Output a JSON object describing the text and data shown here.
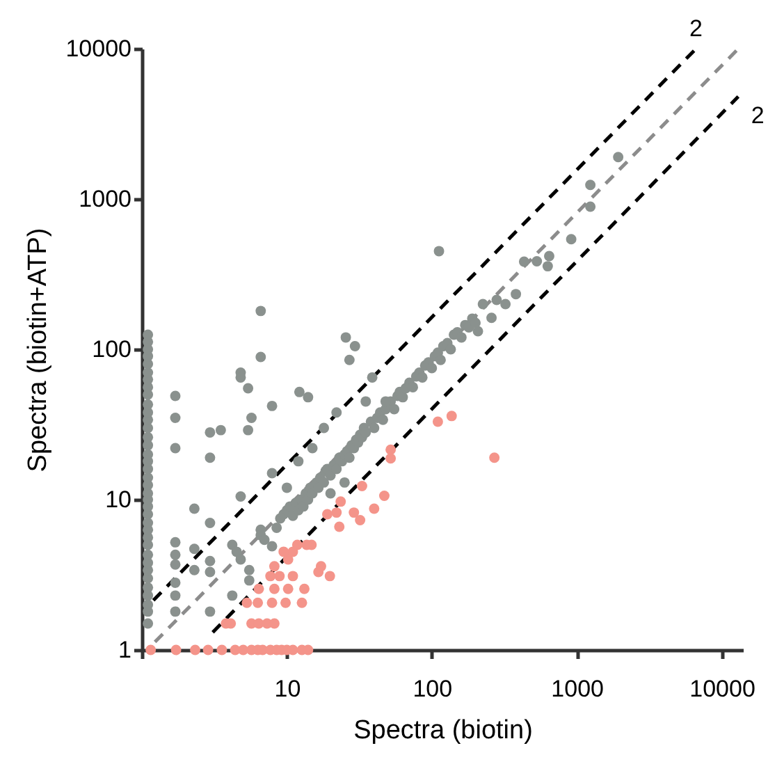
{
  "chart_data": {
    "type": "scatter",
    "xlabel": "Spectra (biotin)",
    "ylabel": "Spectra (biotin+ATP)",
    "xlim": [
      1,
      14000
    ],
    "ylim": [
      1,
      10000
    ],
    "xticks": [
      {
        "value": 1,
        "label": null
      },
      10,
      100,
      1000,
      10000
    ],
    "yticks": [
      1,
      10,
      100,
      1000,
      10000
    ],
    "log": "xy",
    "grid": false,
    "marker": "circle",
    "annotations": [
      "2",
      "2"
    ],
    "series": [
      {
        "type": "line",
        "marker": "none",
        "color": "#000000",
        "line_style": "dashed",
        "x": [
          1.2,
          6640
        ],
        "values": [
          2.14,
          10000
        ]
      },
      {
        "type": "line",
        "marker": "none",
        "color": "#000000",
        "line_style": "dashed",
        "x": [
          3.08,
          13000
        ],
        "values": [
          1.31,
          4800
        ]
      },
      {
        "type": "line",
        "marker": "none",
        "color": "#8c8c8c",
        "line_style": "dashed",
        "x": [
          1.23,
          13000
        ],
        "values": [
          1.13,
          10000
        ]
      },
      {
        "color": "#8a918e",
        "x": [
          1.1,
          1.1,
          1.1,
          1.1,
          1.1,
          1.1,
          1.1,
          1.1,
          1.1,
          1.1,
          1.1,
          1.1,
          1.1,
          1.1,
          1.1,
          1.1,
          1.1,
          1.1,
          1.1,
          1.1,
          1.1,
          1.1,
          1.1,
          1.1,
          1.1,
          1.1,
          1.1,
          1.1,
          1.1,
          1.1,
          1.1,
          1.1,
          1.1,
          1.1,
          1.1,
          1.1,
          1.1,
          1.7,
          1.7,
          1.7,
          1.7,
          1.7,
          1.7,
          1.7,
          1.7,
          1.7,
          2.3,
          2.3,
          2.3,
          2.95,
          3.5,
          2.95,
          2.95,
          2.95,
          2.95,
          2.95,
          4.8,
          4.8,
          5.4,
          7.9,
          5.7,
          5.4,
          6.6,
          6.6,
          12.2,
          14,
          25.5,
          29.5,
          27,
          7.9,
          10,
          4.8,
          4.2,
          4.5,
          4.8,
          5.5,
          5.5,
          6.6,
          6.6,
          7,
          7.9,
          4.2,
          8.5,
          9,
          9.5,
          10,
          10.5,
          11,
          11.5,
          12,
          12.5,
          13,
          13.5,
          14,
          14.5,
          15,
          16,
          16.5,
          17,
          18,
          18.5,
          19,
          20,
          21,
          22,
          23,
          24,
          25,
          26,
          27,
          28,
          29,
          30,
          31,
          32,
          33,
          34,
          35,
          38,
          40,
          42,
          44,
          46,
          48,
          52,
          55,
          58,
          60,
          63,
          66,
          70,
          74,
          78,
          82,
          86,
          90,
          95,
          100,
          105,
          110,
          115,
          120,
          128,
          135,
          142,
          150,
          160,
          170,
          180,
          190,
          200,
          208,
          225,
          258,
          280,
          322,
          380,
          433,
          530,
          645,
          630,
          915,
          1240,
          1240,
          1930,
          112,
          38.8,
          22,
          35,
          48,
          18,
          15,
          12,
          20,
          25
        ],
        "values": [
          1.5,
          1.8,
          2,
          2.3,
          2.6,
          3,
          3.4,
          3.8,
          4.3,
          5,
          5.6,
          6.3,
          7,
          8,
          9,
          10,
          11,
          12.5,
          14,
          16,
          18,
          20,
          23,
          26,
          30,
          34,
          38,
          43,
          50,
          56,
          63,
          70,
          80,
          90,
          100,
          112,
          125,
          49,
          35,
          22,
          5.2,
          4.3,
          3.7,
          2.8,
          2.3,
          1.8,
          8.7,
          4.7,
          3.4,
          28,
          29,
          19,
          7,
          3.9,
          3.3,
          1.8,
          70,
          65,
          55,
          42,
          35,
          29,
          180,
          89,
          52,
          48,
          120,
          105,
          85,
          15,
          12,
          10.5,
          5,
          4.5,
          4,
          3.4,
          2.9,
          6.3,
          5.8,
          5.4,
          4.9,
          2.3,
          6.5,
          7.5,
          8,
          8.5,
          9,
          7.8,
          9.5,
          8.5,
          10,
          9,
          11,
          10,
          12,
          11,
          13,
          12,
          14,
          13,
          15.5,
          16,
          14.5,
          17,
          16,
          19,
          18,
          20,
          21,
          19,
          23,
          22,
          25,
          24,
          27,
          26,
          30,
          28,
          33,
          30,
          35,
          38,
          34,
          40,
          45,
          40,
          49,
          52,
          48,
          55,
          60,
          56,
          66,
          70,
          65,
          78,
          82,
          75,
          90,
          95,
          85,
          105,
          110,
          100,
          125,
          130,
          120,
          145,
          140,
          160,
          150,
          132,
          200,
          162,
          213,
          200,
          233,
          383,
          385,
          417,
          357,
          540,
          1240,
          890,
          1900,
          450,
          65,
          38,
          45,
          45,
          30,
          22,
          18,
          11,
          13
        ]
      },
      {
        "color": "#f4948a",
        "x": [
          110,
          137,
          270,
          52,
          52,
          33,
          47,
          40,
          29,
          32,
          22,
          23,
          19,
          23.5,
          14.8,
          13.7,
          11.8,
          11,
          10.2,
          9.5,
          8.2,
          7.7,
          8.9,
          8.2,
          10.2,
          11,
          13.2,
          12.7,
          9.8,
          7.9,
          6.4,
          6.3,
          5.3,
          5.7,
          6.4,
          7.3,
          8.2,
          4.1,
          3.8,
          17.2,
          19.8,
          16.5,
          1.15,
          1.72,
          2.33,
          2.86,
          3.56,
          4.4,
          5,
          5.7,
          6.3,
          6.8,
          7.7,
          8.5,
          9.2,
          10,
          11,
          12.7,
          14
        ],
        "values": [
          33,
          36,
          19,
          21.5,
          18.8,
          12.3,
          10.6,
          8.7,
          8.2,
          7.3,
          8.2,
          6.6,
          8,
          9.7,
          5,
          5,
          5,
          4.5,
          4,
          4.5,
          3.6,
          3.1,
          3.1,
          2.55,
          2.55,
          3.1,
          2.55,
          2.06,
          2.06,
          2.06,
          2.55,
          2.06,
          2.06,
          1.5,
          1.5,
          1.5,
          1.5,
          1.5,
          1.5,
          3.6,
          3.1,
          3.3,
          1,
          1,
          1,
          1,
          1,
          1,
          1,
          1,
          1,
          1,
          1,
          1,
          1,
          1,
          1,
          1,
          1
        ]
      }
    ]
  }
}
